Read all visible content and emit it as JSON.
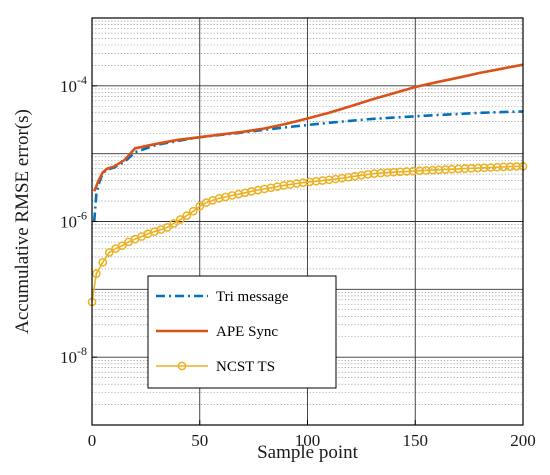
{
  "chart_data": {
    "type": "line",
    "xlabel": "Sample point",
    "ylabel": "Accumulative RMSE error(s)",
    "xlim": [
      0,
      200
    ],
    "ylim": [
      1e-09,
      0.001
    ],
    "yscale": "log",
    "grid": true,
    "minor_grid": true,
    "legend_position": "bottom-left",
    "x_ticks": [
      0,
      50,
      100,
      150,
      200
    ],
    "x_tick_labels": [
      "0",
      "50",
      "100",
      "150",
      "200"
    ],
    "y_ticks": [
      1e-08,
      1e-06,
      0.0001
    ],
    "y_tick_labels": [
      {
        "base": "10",
        "exp": "-8"
      },
      {
        "base": "10",
        "exp": "-6"
      },
      {
        "base": "10",
        "exp": "-4"
      }
    ],
    "series": [
      {
        "name": "Tri message",
        "color": "#0072BD",
        "style": "dash-dot",
        "x": [
          1,
          2,
          3,
          5,
          7,
          10,
          15,
          20,
          30,
          40,
          50,
          60,
          70,
          80,
          90,
          100,
          110,
          120,
          130,
          140,
          150,
          160,
          170,
          180,
          190,
          200
        ],
        "y": [
          1e-06,
          2.5e-06,
          3.5e-06,
          5.2e-06,
          5.8e-06,
          6.2e-06,
          7.5e-06,
          1.05e-05,
          1.35e-05,
          1.55e-05,
          1.75e-05,
          1.9e-05,
          2.05e-05,
          2.25e-05,
          2.45e-05,
          2.65e-05,
          2.85e-05,
          3.05e-05,
          3.25e-05,
          3.4e-05,
          3.55e-05,
          3.7e-05,
          3.85e-05,
          4e-05,
          4.1e-05,
          4.2e-05
        ]
      },
      {
        "name": "APE Sync",
        "color": "#D95319",
        "style": "solid",
        "x": [
          1,
          2,
          3,
          5,
          7,
          10,
          15,
          20,
          30,
          40,
          50,
          60,
          70,
          80,
          90,
          100,
          110,
          120,
          130,
          140,
          150,
          160,
          170,
          180,
          190,
          200
        ],
        "y": [
          2.8e-06,
          3.3e-06,
          4e-06,
          5.3e-06,
          6e-06,
          6.4e-06,
          8e-06,
          1.2e-05,
          1.4e-05,
          1.6e-05,
          1.75e-05,
          1.92e-05,
          2.1e-05,
          2.35e-05,
          2.75e-05,
          3.3e-05,
          4e-05,
          5e-05,
          6.3e-05,
          7.8e-05,
          9.6e-05,
          0.000113,
          0.000132,
          0.000155,
          0.000178,
          0.000205
        ]
      },
      {
        "name": "NCST TS",
        "color": "#EDB120",
        "style": "solid-circle-markers",
        "x": [
          0,
          2,
          5,
          8,
          11,
          14,
          17,
          20,
          23,
          26,
          29,
          32,
          35,
          38,
          41,
          44,
          47,
          50,
          53,
          56,
          59,
          62,
          65,
          68,
          71,
          74,
          77,
          80,
          83,
          86,
          89,
          92,
          95,
          98,
          101,
          104,
          107,
          110,
          113,
          116,
          119,
          122,
          125,
          128,
          131,
          134,
          137,
          140,
          143,
          146,
          149,
          152,
          155,
          158,
          161,
          164,
          167,
          170,
          173,
          176,
          179,
          182,
          185,
          188,
          191,
          194,
          197,
          200
        ],
        "y": [
          6.5e-08,
          1.7e-07,
          2.5e-07,
          3.5e-07,
          4e-07,
          4.4e-07,
          5e-07,
          5.5e-07,
          6e-07,
          6.6e-07,
          7.1e-07,
          7.6e-07,
          8.2e-07,
          9.4e-07,
          1.07e-06,
          1.22e-06,
          1.42e-06,
          1.68e-06,
          1.9e-06,
          2.05e-06,
          2.2e-06,
          2.3e-06,
          2.42e-06,
          2.53e-06,
          2.65e-06,
          2.78e-06,
          2.9e-06,
          3.02e-06,
          3.14e-06,
          3.27e-06,
          3.4e-06,
          3.52e-06,
          3.63e-06,
          3.74e-06,
          3.84e-06,
          3.93e-06,
          4.02e-06,
          4.12e-06,
          4.22e-06,
          4.35e-06,
          4.5e-06,
          4.65e-06,
          4.8e-06,
          4.95e-06,
          5.08e-06,
          5.18e-06,
          5.26e-06,
          5.33e-06,
          5.4e-06,
          5.47e-06,
          5.53e-06,
          5.6e-06,
          5.66e-06,
          5.72e-06,
          5.78e-06,
          5.84e-06,
          5.9e-06,
          5.96e-06,
          6.02e-06,
          6.08e-06,
          6.14e-06,
          6.2e-06,
          6.26e-06,
          6.32e-06,
          6.38e-06,
          6.44e-06,
          6.48e-06,
          6.52e-06
        ]
      }
    ]
  }
}
